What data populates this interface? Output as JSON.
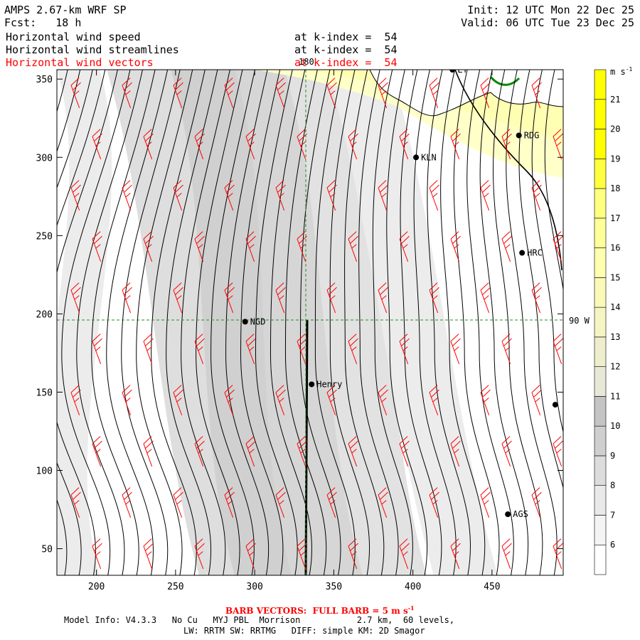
{
  "header": {
    "title": "AMPS 2.67-km WRF SP",
    "forecast": "Fcst:   18 h",
    "init": "Init: 12 UTC Mon 22 Dec 25",
    "valid": "Valid: 06 UTC Tue 23 Dec 25",
    "fields": [
      {
        "name": "Horizontal wind speed",
        "level": "at k-index =  54",
        "color": "#000000"
      },
      {
        "name": "Horizontal wind streamlines",
        "level": "at k-index =  54",
        "color": "#000000"
      },
      {
        "name": "Horizontal wind vectors",
        "level": "at k-index =  54",
        "color": "#ff0000"
      }
    ]
  },
  "colorbar": {
    "unit": "m s",
    "unit_sup": "-1",
    "levels": [
      "6",
      "7",
      "8",
      "9",
      "10",
      "11",
      "12",
      "13",
      "14",
      "15",
      "16",
      "17",
      "18",
      "19",
      "20",
      "21"
    ],
    "colors": [
      "#ffffff",
      "#f4f4f4",
      "#e9e9e9",
      "#dcdcdc",
      "#cfcfcf",
      "#c4c4c4",
      "#e8e8d6",
      "#eeeecc",
      "#f5f5c4",
      "#fafab8",
      "#ffffb0",
      "#ffff9a",
      "#ffff80",
      "#ffff40",
      "#ffff00",
      "#ffff00",
      "#ffff00"
    ]
  },
  "map": {
    "top_label": "180",
    "right_label": "90 W",
    "stations": [
      {
        "name": "LY",
        "x": 425,
        "y": 356
      },
      {
        "name": "RDG",
        "x": 467,
        "y": 314
      },
      {
        "name": "KLN",
        "x": 402,
        "y": 300
      },
      {
        "name": "HRC",
        "x": 469,
        "y": 239
      },
      {
        "name": "NGD",
        "x": 294,
        "y": 195
      },
      {
        "name": "Henry",
        "x": 336,
        "y": 155
      },
      {
        "name": "",
        "x": 490,
        "y": 142
      },
      {
        "name": "AGS",
        "x": 460,
        "y": 72
      }
    ]
  },
  "chart_data": {
    "type": "heatmap",
    "title": "Horizontal wind speed",
    "x_ticks": [
      200,
      250,
      300,
      350,
      400,
      450
    ],
    "y_ticks": [
      50,
      100,
      150,
      200,
      250,
      300,
      350
    ],
    "xlim": [
      175,
      495
    ],
    "ylim": [
      33,
      356
    ],
    "colorbar_unit": "m s-1"
  },
  "footer": {
    "barb_note": "BARB VECTORS:  FULL BARB = 5 m s",
    "barb_sup": "-1",
    "model_info": "Model Info: V4.3.3   No Cu   MYJ PBL  Morrison           2.7 km,  60 levels,",
    "physics": "LW: RRTM SW: RRTMG   DIFF: simple KM: 2D Smagor"
  }
}
